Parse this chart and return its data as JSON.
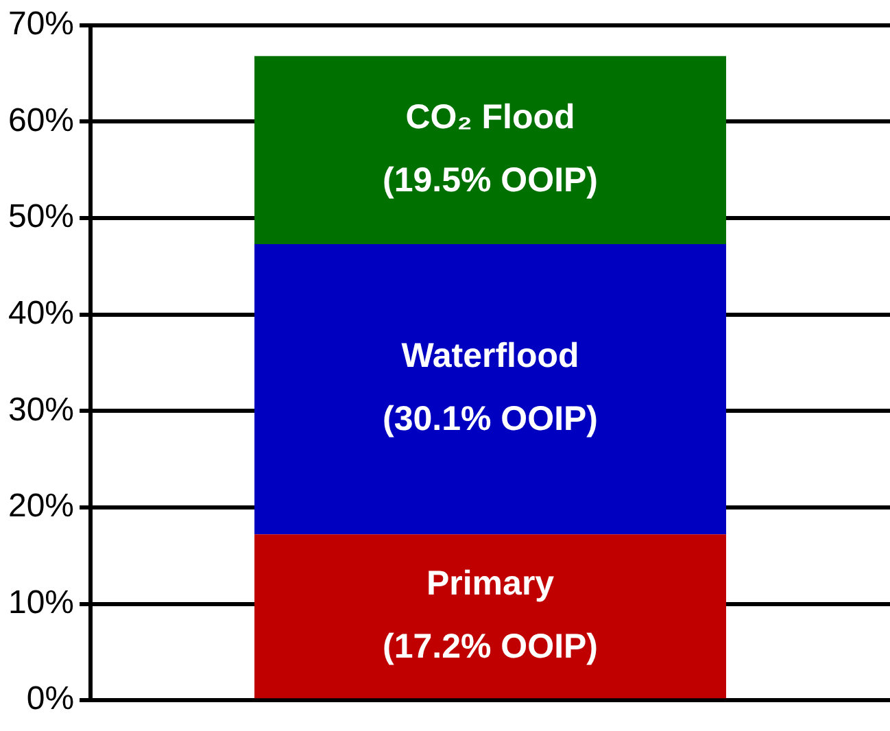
{
  "chart_data": {
    "type": "bar",
    "stacked": true,
    "categories": [
      null
    ],
    "series": [
      {
        "name": "Primary",
        "color": "#c00000",
        "values": [
          17.2
        ],
        "value_labels": [
          "(17.2% OOIP)"
        ]
      },
      {
        "name": "Waterflood",
        "color": "#0000c0",
        "values": [
          30.1
        ],
        "value_labels": [
          "(30.1% OOIP)"
        ]
      },
      {
        "name": "CO₂ Flood",
        "color": "#007000",
        "values": [
          19.5
        ],
        "value_labels": [
          "(19.5% OOIP)"
        ]
      }
    ],
    "ylim": [
      0,
      70
    ],
    "yticks": [
      {
        "value": 0,
        "label": "0%"
      },
      {
        "value": 10,
        "label": "10%"
      },
      {
        "value": 20,
        "label": "20%"
      },
      {
        "value": 30,
        "label": "30%"
      },
      {
        "value": 40,
        "label": "40%"
      },
      {
        "value": 50,
        "label": "50%"
      },
      {
        "value": 60,
        "label": "60%"
      },
      {
        "value": 70,
        "label": "70%"
      }
    ],
    "grid": "y",
    "legend": false
  }
}
